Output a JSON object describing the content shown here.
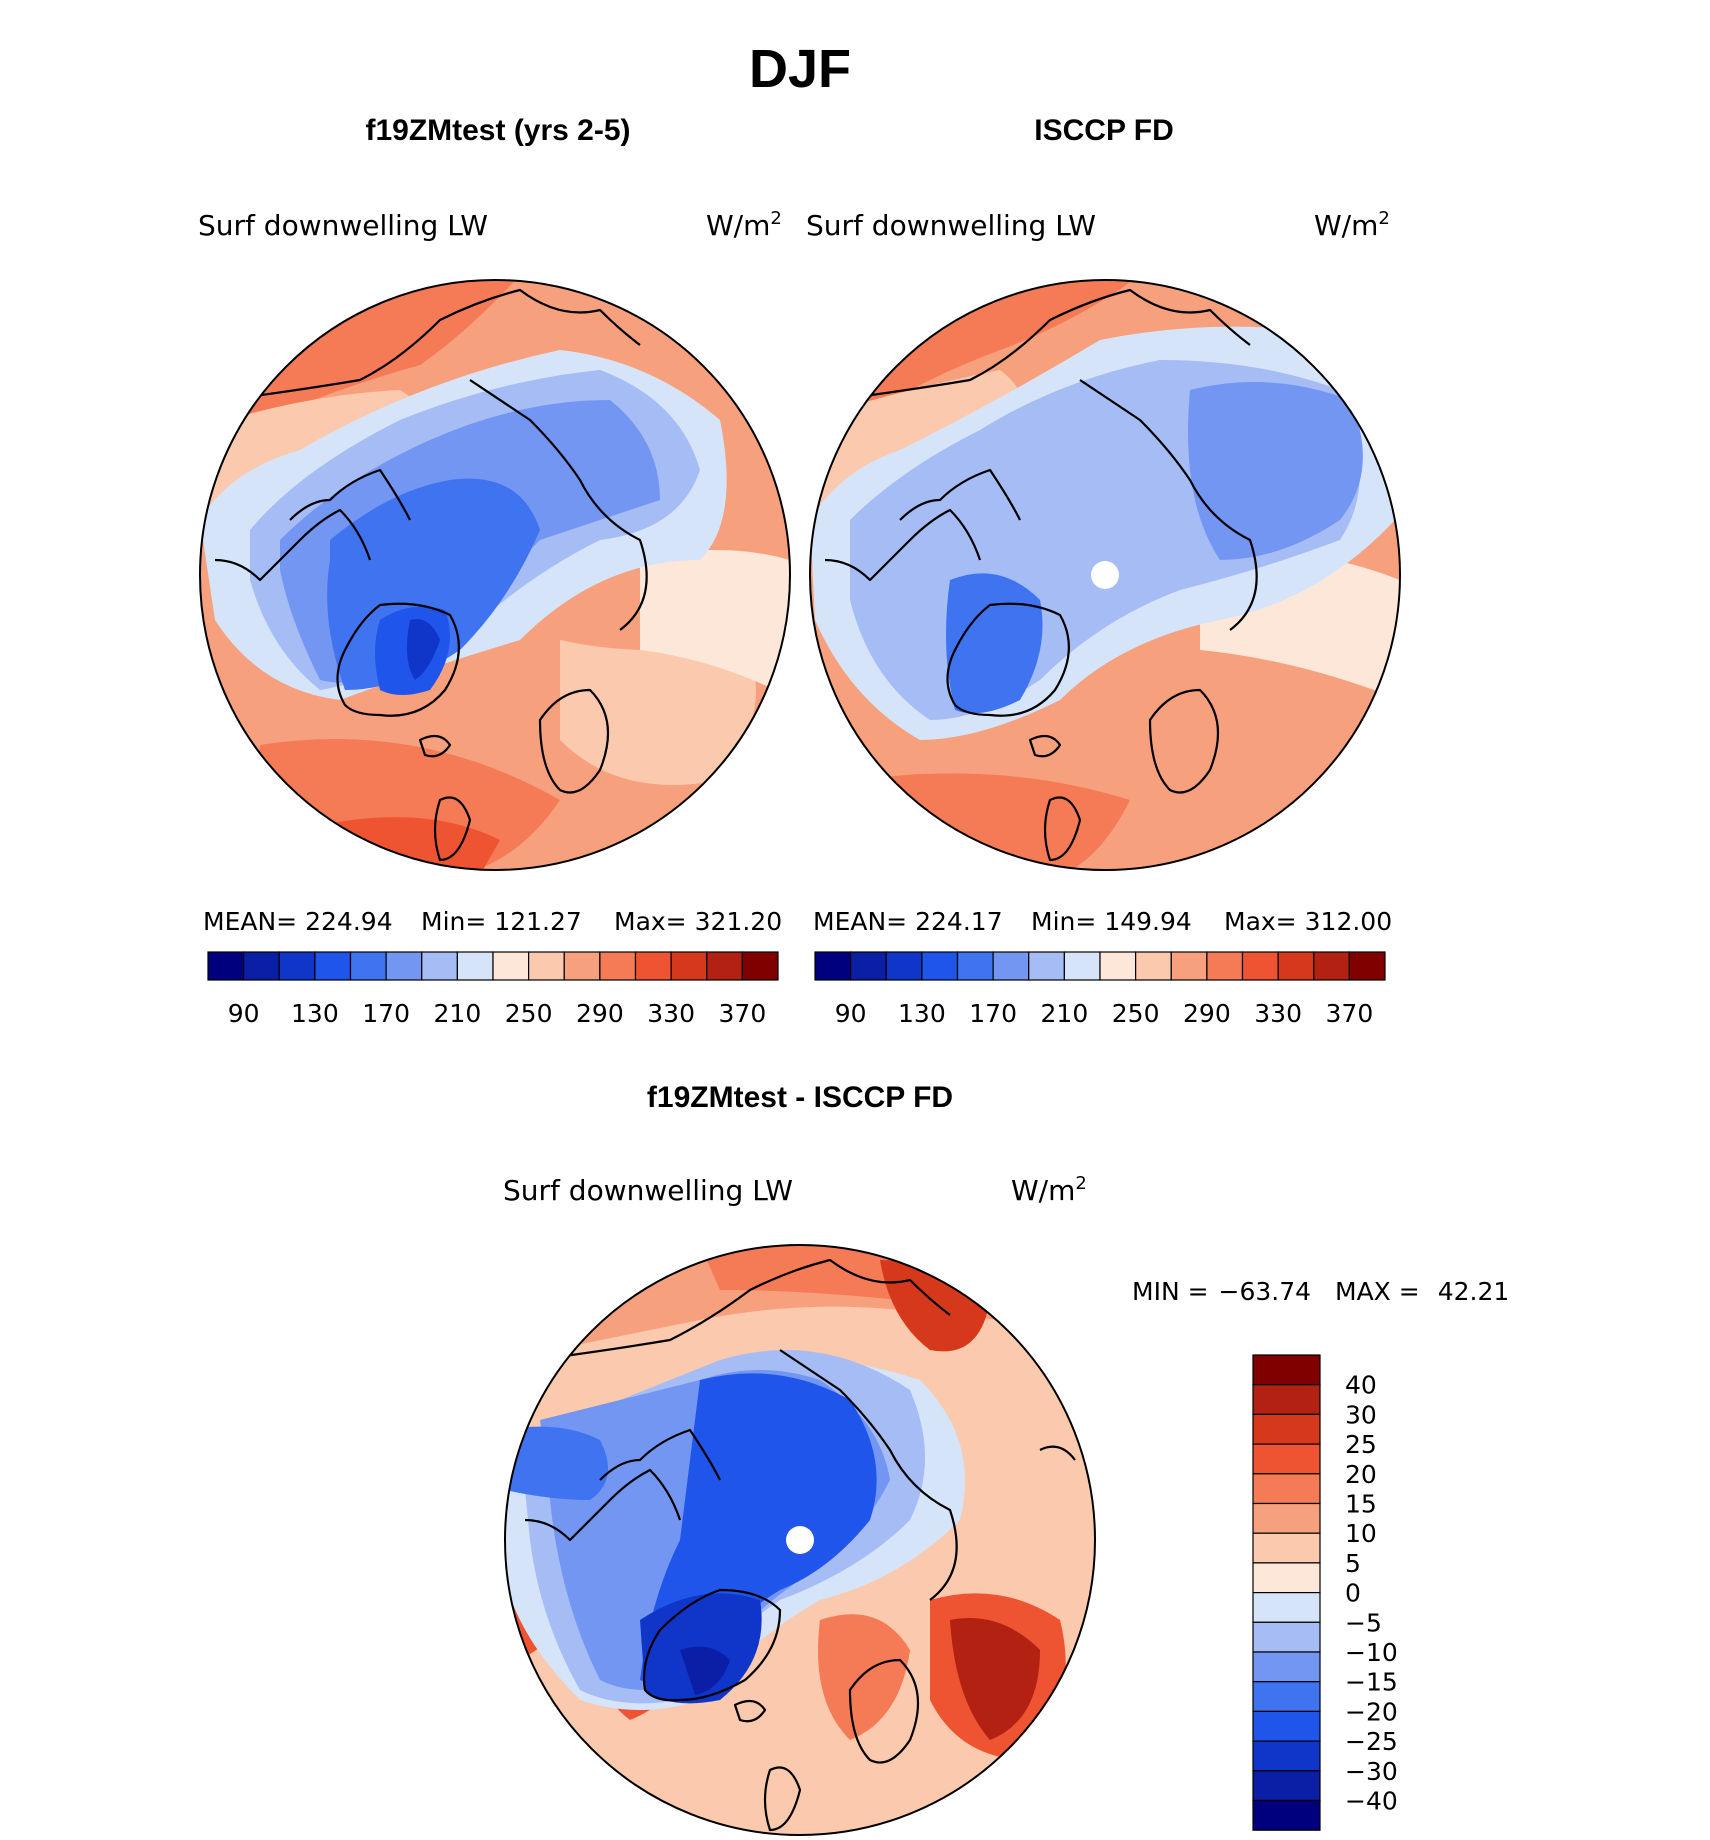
{
  "page_title": "DJF",
  "panels": [
    {
      "title": "f19ZMtest (yrs 2-5)",
      "variable": "Surf downwelling LW",
      "units_base": "W/m",
      "units_exp": "2",
      "stats": {
        "mean_label": "MEAN=",
        "mean": "224.94",
        "min_label": "Min=",
        "min": "121.27",
        "max_label": "Max=",
        "max": "321.20"
      },
      "colorbar_ticks": [
        "90",
        "130",
        "170",
        "210",
        "250",
        "290",
        "330",
        "370"
      ]
    },
    {
      "title": "ISCCP FD",
      "variable": "Surf downwelling LW",
      "units_base": "W/m",
      "units_exp": "2",
      "stats": {
        "mean_label": "MEAN=",
        "mean": "224.17",
        "min_label": "Min=",
        "min": "149.94",
        "max_label": "Max=",
        "max": "312.00"
      },
      "colorbar_ticks": [
        "90",
        "130",
        "170",
        "210",
        "250",
        "290",
        "330",
        "370"
      ]
    }
  ],
  "diff_panel": {
    "title": "f19ZMtest - ISCCP FD",
    "variable": "Surf downwelling LW",
    "units_base": "W/m",
    "units_exp": "2",
    "min_label": "MIN =",
    "min": "−63.74",
    "max_label": "MAX =",
    "max": "42.21",
    "colorbar_labels": [
      "40",
      "30",
      "25",
      "20",
      "15",
      "10",
      "5",
      "0",
      "−5",
      "−10",
      "−15",
      "−20",
      "−25",
      "−30",
      "−40"
    ]
  },
  "abs_colors": [
    "#00007e",
    "#0a1fa6",
    "#0f36c9",
    "#1f55eb",
    "#3f73f0",
    "#7396f2",
    "#a5bcf5",
    "#d6e4fa",
    "#fde7d8",
    "#fbc9ad",
    "#f7a07d",
    "#f47b55",
    "#ee5431",
    "#d6381b",
    "#b32112",
    "#800000"
  ],
  "diff_colors": [
    "#800000",
    "#b32112",
    "#d6381b",
    "#ee5431",
    "#f47b55",
    "#f7a07d",
    "#fbc9ad",
    "#fde7d8",
    "#d6e4fa",
    "#a5bcf5",
    "#7396f2",
    "#3f73f0",
    "#1f55eb",
    "#0f36c9",
    "#0a1fa6",
    "#00007e"
  ]
}
